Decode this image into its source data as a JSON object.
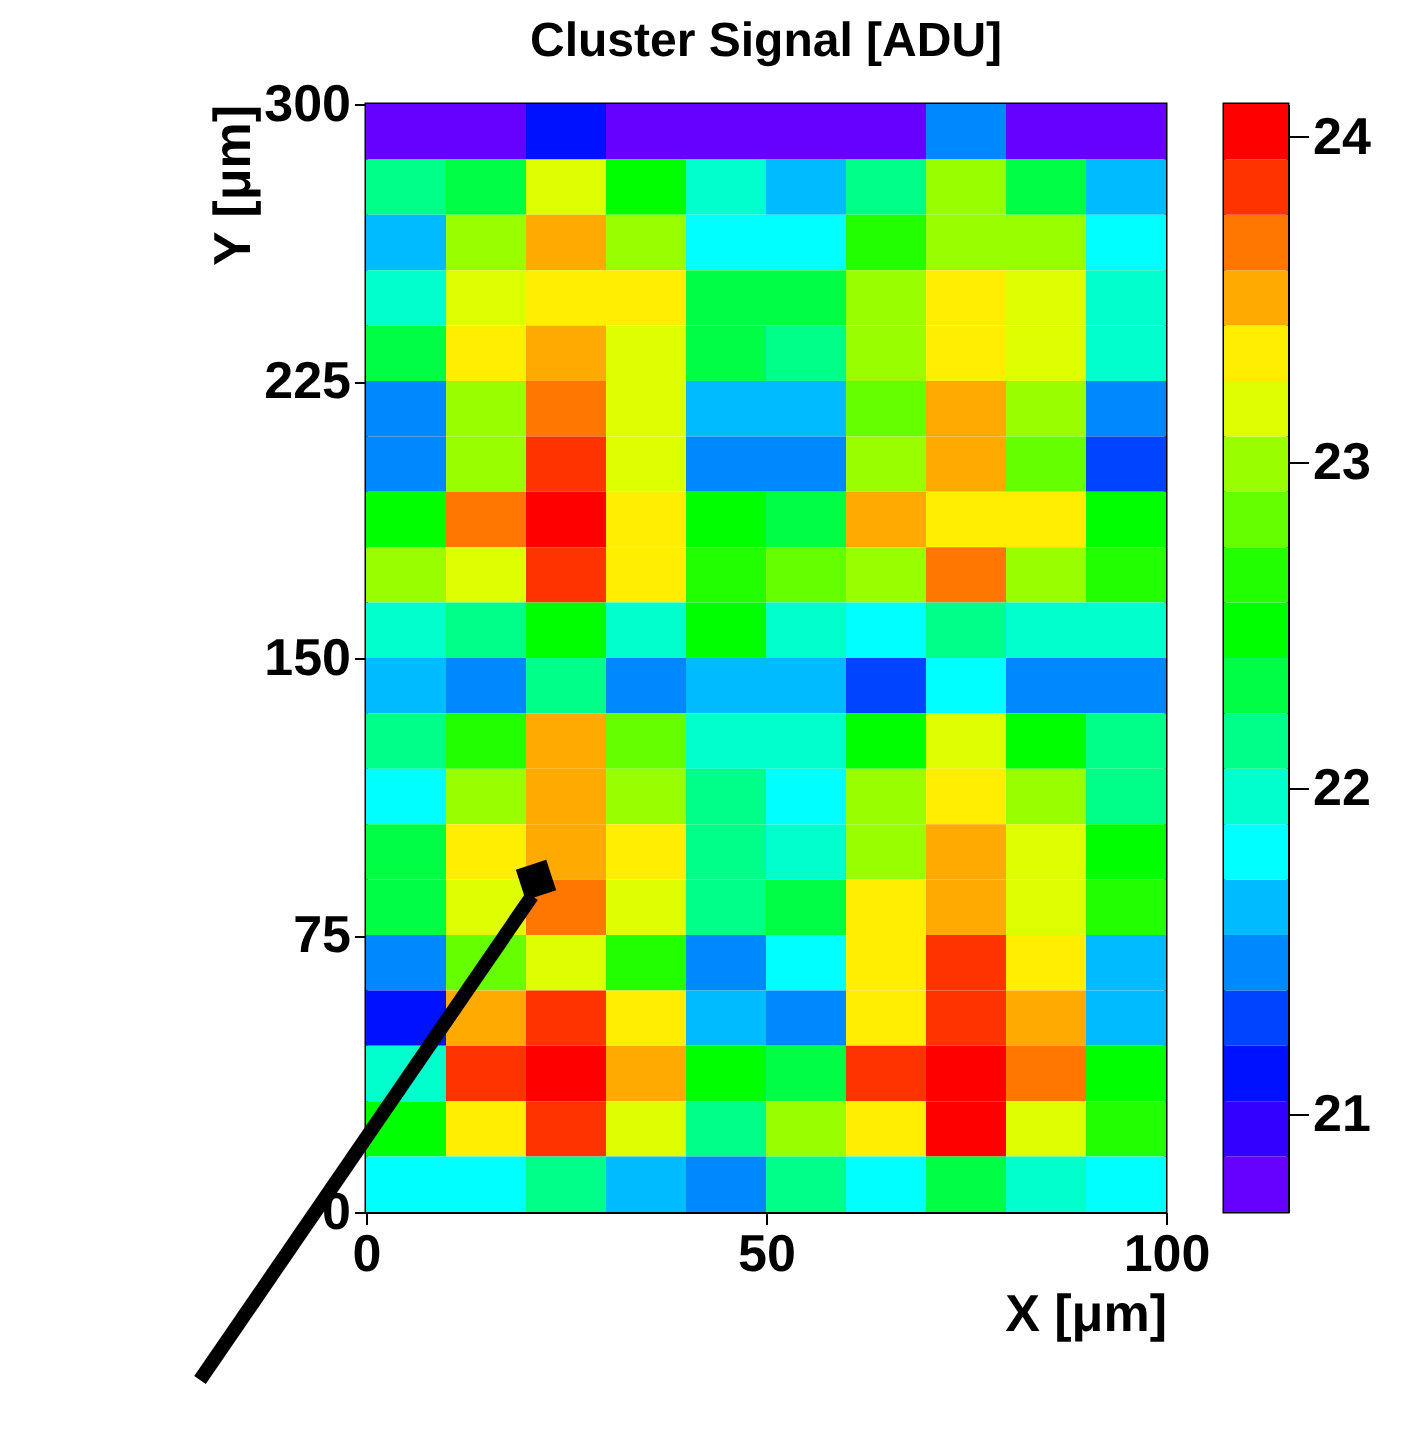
{
  "chart_data": {
    "type": "heatmap",
    "title": "Cluster Signal [ADU]",
    "xlabel": "X [μm]",
    "ylabel": "Y [μm]",
    "xlim": [
      0,
      100
    ],
    "xticks": [
      0,
      50,
      100
    ],
    "ylim": [
      0,
      300
    ],
    "yticks": [
      0,
      75,
      150,
      225,
      300
    ],
    "clim": [
      20.7,
      24.1
    ],
    "cticks": [
      21,
      22,
      23,
      24
    ],
    "colors": [
      "#6600ff",
      "#3300ff",
      "#0011ff",
      "#0044ff",
      "#0088ff",
      "#00bbff",
      "#00ffff",
      "#00ffcc",
      "#00ff88",
      "#00ff44",
      "#00ff00",
      "#22ff00",
      "#66ff00",
      "#99ff00",
      "#ddff00",
      "#ffee00",
      "#ffaa00",
      "#ff7700",
      "#ff3300",
      "#ff0000"
    ],
    "cells": [
      [
        20.79,
        20.79,
        21.13,
        20.79,
        20.79,
        20.79,
        20.79,
        21.47,
        20.79,
        20.79
      ],
      [
        22.15,
        22.32,
        23.17,
        22.49,
        21.98,
        21.64,
        22.15,
        23.0,
        22.32,
        21.64
      ],
      [
        21.64,
        23.0,
        23.51,
        23.0,
        21.81,
        21.81,
        22.66,
        23.0,
        23.0,
        21.81
      ],
      [
        21.98,
        23.17,
        23.34,
        23.34,
        22.32,
        22.32,
        23.0,
        23.34,
        23.17,
        21.98
      ],
      [
        22.32,
        23.34,
        23.51,
        23.17,
        22.32,
        22.15,
        23.0,
        23.34,
        23.17,
        21.98
      ],
      [
        21.47,
        23.0,
        23.68,
        23.17,
        21.64,
        21.64,
        22.83,
        23.51,
        23.0,
        21.47
      ],
      [
        21.47,
        23.0,
        23.85,
        23.17,
        21.47,
        21.47,
        23.0,
        23.51,
        22.83,
        21.3
      ],
      [
        22.49,
        23.68,
        24.02,
        23.34,
        22.49,
        22.32,
        23.51,
        23.34,
        23.34,
        22.49
      ],
      [
        23.0,
        23.17,
        23.85,
        23.34,
        22.66,
        22.83,
        23.0,
        23.68,
        23.0,
        22.66
      ],
      [
        21.98,
        22.15,
        22.49,
        21.98,
        22.49,
        21.98,
        21.81,
        22.15,
        21.98,
        21.98
      ],
      [
        21.64,
        21.47,
        22.15,
        21.47,
        21.64,
        21.64,
        21.3,
        21.81,
        21.47,
        21.47
      ],
      [
        22.15,
        22.66,
        23.51,
        22.83,
        21.98,
        21.98,
        22.49,
        23.17,
        22.49,
        22.15
      ],
      [
        21.81,
        23.0,
        23.51,
        23.0,
        22.15,
        21.81,
        23.0,
        23.34,
        23.0,
        22.15
      ],
      [
        22.32,
        23.34,
        23.51,
        23.34,
        22.15,
        21.98,
        23.0,
        23.51,
        23.17,
        22.49
      ],
      [
        22.32,
        23.17,
        23.68,
        23.17,
        22.15,
        22.32,
        23.34,
        23.51,
        23.17,
        22.66
      ],
      [
        21.47,
        22.83,
        23.17,
        22.66,
        21.47,
        21.81,
        23.34,
        23.85,
        23.34,
        21.64
      ],
      [
        21.13,
        23.51,
        23.85,
        23.34,
        21.64,
        21.47,
        23.34,
        23.85,
        23.51,
        21.64
      ],
      [
        21.98,
        23.85,
        24.02,
        23.51,
        22.49,
        22.32,
        23.85,
        24.02,
        23.68,
        22.49
      ],
      [
        22.49,
        23.34,
        23.85,
        23.17,
        22.15,
        23.0,
        23.34,
        24.02,
        23.17,
        22.66
      ],
      [
        21.81,
        21.81,
        22.15,
        21.64,
        21.47,
        22.15,
        21.81,
        22.32,
        21.98,
        21.81
      ]
    ]
  }
}
